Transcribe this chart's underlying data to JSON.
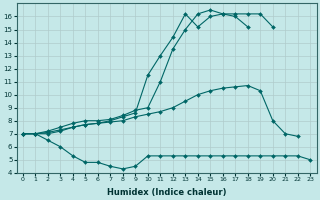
{
  "xlabel": "Humidex (Indice chaleur)",
  "xlim": [
    -0.5,
    23.5
  ],
  "ylim": [
    4,
    17
  ],
  "yticks": [
    4,
    5,
    6,
    7,
    8,
    9,
    10,
    11,
    12,
    13,
    14,
    15,
    16
  ],
  "xticks": [
    0,
    1,
    2,
    3,
    4,
    5,
    6,
    7,
    8,
    9,
    10,
    11,
    12,
    13,
    14,
    15,
    16,
    17,
    18,
    19,
    20,
    21,
    22,
    23
  ],
  "xtick_labels": [
    "0",
    "1",
    "2",
    "3",
    "4",
    "5",
    "6",
    "7",
    "8",
    "9",
    "10",
    "11",
    "12",
    "13",
    "14",
    "15",
    "16",
    "17",
    "18",
    "19",
    "20",
    "21",
    "22",
    "23"
  ],
  "background_color": "#c5e8e8",
  "grid_color": "#b0cccc",
  "line_color": "#006666",
  "line1_x": [
    0,
    1,
    2,
    3,
    4,
    5,
    6,
    7,
    8,
    9,
    10,
    11,
    12,
    13,
    14,
    15,
    16,
    17,
    18,
    19,
    20,
    21,
    22,
    23
  ],
  "line1_y": [
    7.0,
    7.0,
    6.5,
    6.0,
    5.3,
    4.8,
    4.8,
    4.5,
    4.3,
    4.5,
    5.3,
    5.3,
    5.3,
    5.3,
    5.3,
    5.3,
    5.3,
    5.3,
    5.3,
    5.3,
    5.3,
    5.3,
    5.3,
    5.0
  ],
  "line2_x": [
    0,
    1,
    2,
    3,
    4,
    5,
    6,
    7,
    8,
    9,
    10,
    11,
    12,
    13,
    14,
    15,
    16,
    17,
    18,
    19,
    20,
    21,
    22
  ],
  "line2_y": [
    7.0,
    7.0,
    7.0,
    7.2,
    7.5,
    7.7,
    7.8,
    7.9,
    8.0,
    8.3,
    8.5,
    8.7,
    9.0,
    9.5,
    10.0,
    10.3,
    10.5,
    10.6,
    10.7,
    10.3,
    8.0,
    7.0,
    6.8
  ],
  "line3_x": [
    0,
    1,
    2,
    3,
    4,
    5,
    6,
    7,
    8,
    9,
    10,
    11,
    12,
    13,
    14,
    15,
    16,
    17,
    18,
    19,
    20
  ],
  "line3_y": [
    7.0,
    7.0,
    7.1,
    7.3,
    7.5,
    7.7,
    7.8,
    8.0,
    8.3,
    8.6,
    11.5,
    13.0,
    14.4,
    16.2,
    15.2,
    16.0,
    16.2,
    16.2,
    16.2,
    16.2,
    15.2
  ],
  "line4_x": [
    0,
    1,
    2,
    3,
    4,
    5,
    6,
    7,
    8,
    9,
    10,
    11,
    12,
    13,
    14,
    15,
    16,
    17,
    18
  ],
  "line4_y": [
    7.0,
    7.0,
    7.2,
    7.5,
    7.8,
    8.0,
    8.0,
    8.1,
    8.4,
    8.8,
    9.0,
    11.0,
    13.5,
    15.0,
    16.2,
    16.5,
    16.2,
    16.0,
    15.2
  ]
}
